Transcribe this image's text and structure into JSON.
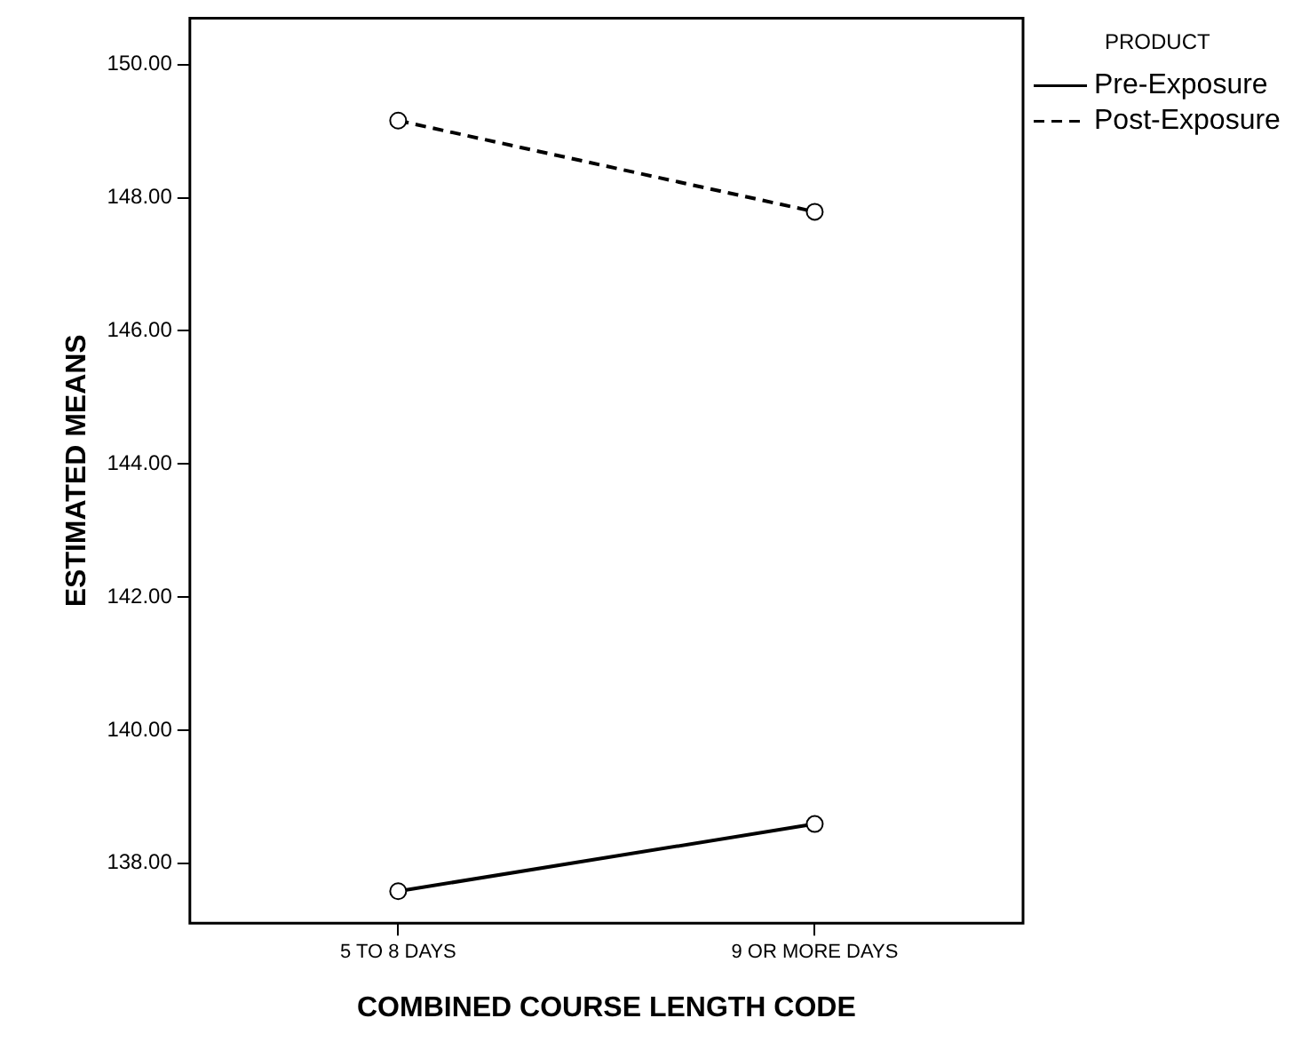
{
  "chart_data": {
    "type": "line",
    "xlabel": "COMBINED COURSE LENGTH CODE",
    "ylabel": "ESTIMATED MEANS",
    "legend_title": "PRODUCT",
    "legend": "top right",
    "marker": "circle",
    "grid": false,
    "categories": [
      "5 TO 8 DAYS",
      "9 OR MORE DAYS"
    ],
    "series": [
      {
        "name": "Pre-Exposure",
        "color": "#000000",
        "line_style": "solid",
        "values": [
          137.58,
          138.59
        ]
      },
      {
        "name": "Post-Exposure",
        "color": "#000000",
        "line_style": "dashed",
        "values": [
          149.16,
          147.79
        ]
      }
    ],
    "ylim": [
      137.1,
      150.7
    ],
    "yticks": [
      {
        "value": 138,
        "label": "138.00"
      },
      {
        "value": 140,
        "label": "140.00"
      },
      {
        "value": 142,
        "label": "142.00"
      },
      {
        "value": 144,
        "label": "144.00"
      },
      {
        "value": 146,
        "label": "146.00"
      },
      {
        "value": 148,
        "label": "148.00"
      },
      {
        "value": 150,
        "label": "150.00"
      }
    ]
  }
}
